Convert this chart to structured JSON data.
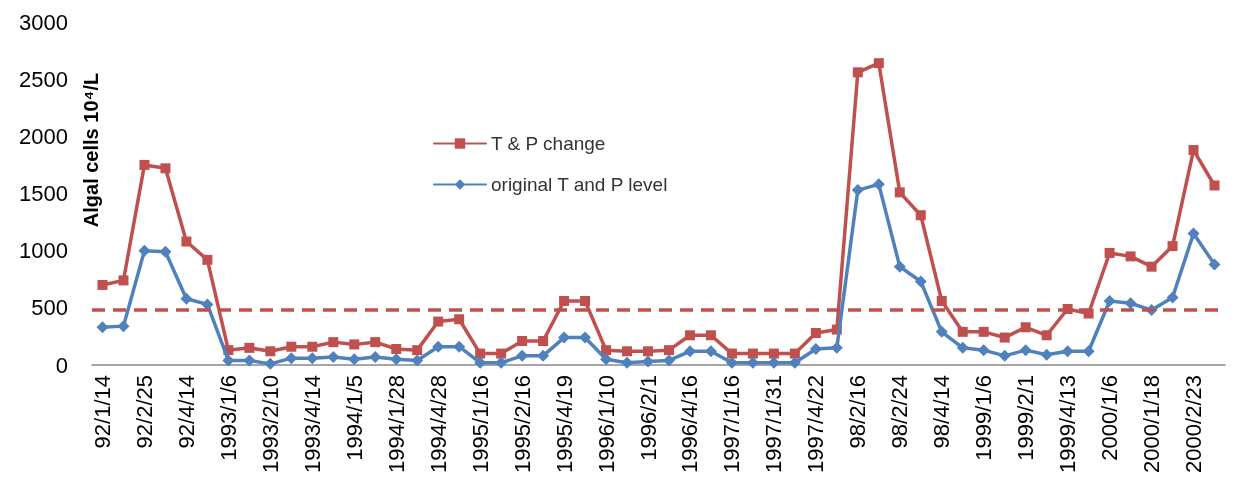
{
  "chart_data": {
    "type": "line",
    "ylabel": "Algal cells 10⁴/L",
    "categories": [
      "92/1/14",
      null,
      "92/2/25",
      null,
      "92/4/14",
      null,
      "1993/1/6",
      null,
      "1993/2/10",
      null,
      "1993/4/14",
      null,
      "1994/1/5",
      null,
      "1994/1/28",
      null,
      "1994/4/28",
      null,
      "1995/1/16",
      null,
      "1995/2/16",
      null,
      "1995/4/19",
      null,
      "1996/1/10",
      null,
      "1996/2/1",
      null,
      "1996/4/16",
      null,
      "1997/1/16",
      null,
      "1997/1/31",
      null,
      "1997/4/22",
      null,
      "98/2/16",
      null,
      "98/2/24",
      null,
      "98/4/14",
      null,
      "1999/1/6",
      null,
      "1999/2/1",
      null,
      "1999/4/13",
      null,
      "2000/1/6",
      null,
      "2000/1/18",
      null,
      "2000/2/23",
      null
    ],
    "series": [
      {
        "name": "T & P change",
        "color": "#c0504d",
        "marker": "square",
        "values": [
          700,
          740,
          1750,
          1720,
          1080,
          920,
          130,
          150,
          120,
          160,
          160,
          200,
          180,
          200,
          140,
          130,
          380,
          400,
          100,
          100,
          210,
          210,
          560,
          560,
          130,
          120,
          120,
          130,
          260,
          260,
          100,
          100,
          100,
          100,
          280,
          310,
          2560,
          2640,
          1510,
          1310,
          560,
          290,
          290,
          240,
          330,
          260,
          490,
          450,
          980,
          950,
          860,
          1040,
          1880,
          1570
        ]
      },
      {
        "name": "original T and P level",
        "color": "#4f81bd",
        "marker": "diamond",
        "values": [
          330,
          340,
          1000,
          990,
          580,
          530,
          40,
          40,
          10,
          60,
          60,
          70,
          50,
          70,
          50,
          40,
          160,
          160,
          20,
          20,
          80,
          80,
          240,
          240,
          50,
          20,
          30,
          40,
          120,
          120,
          20,
          20,
          20,
          20,
          140,
          150,
          1530,
          1580,
          860,
          730,
          290,
          150,
          130,
          80,
          130,
          90,
          120,
          120,
          560,
          540,
          480,
          590,
          1150,
          880
        ]
      }
    ],
    "ylim": [
      0,
      3000
    ],
    "yticks": [
      0,
      500,
      1000,
      1500,
      2000,
      2500,
      3000
    ],
    "ref_lines": [
      {
        "axis": "y",
        "value": 480,
        "color": "#c0504d",
        "line_style": "dashed"
      }
    ],
    "grid": false,
    "legend": "top",
    "line_style": "solid"
  }
}
